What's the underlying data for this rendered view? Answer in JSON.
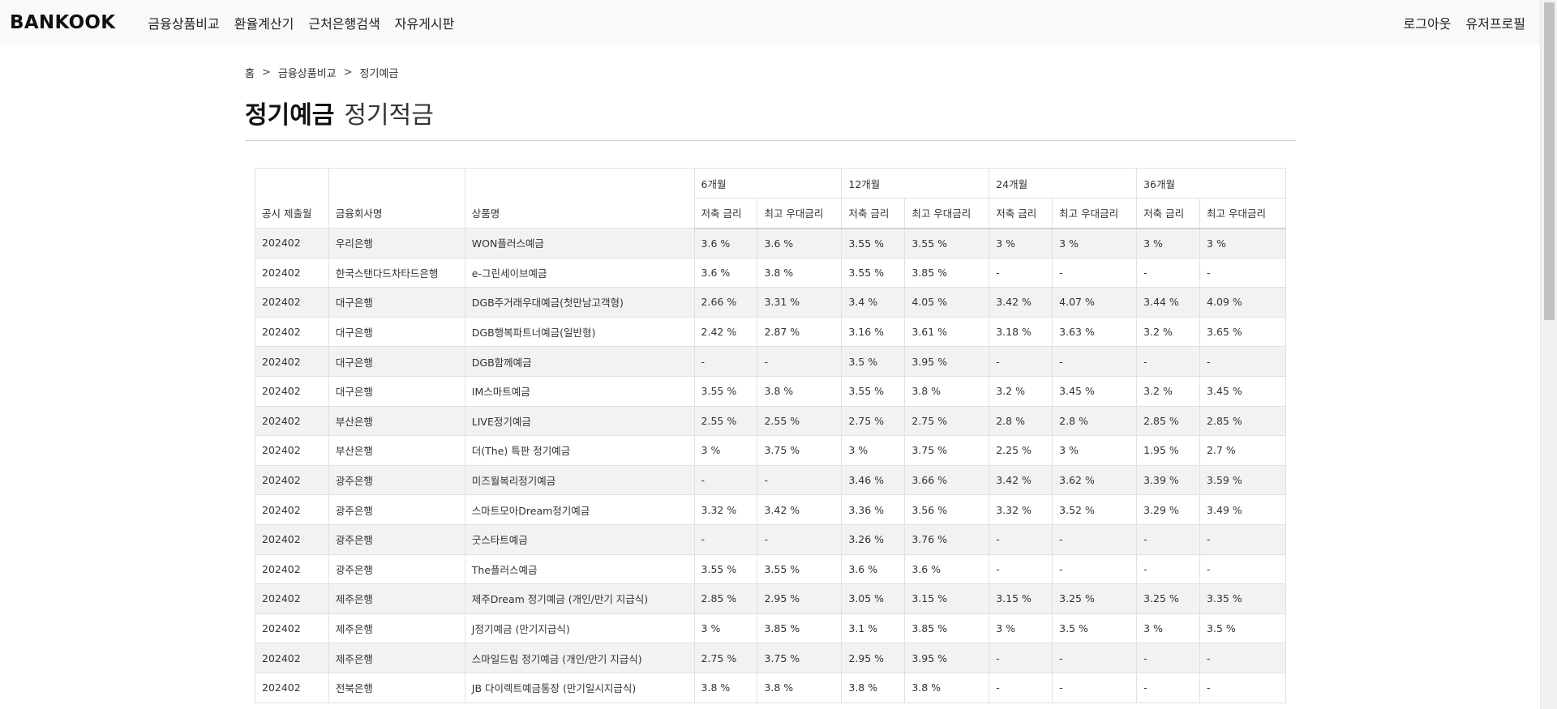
{
  "navbar": {
    "brand": "BANKOOK",
    "links": [
      "금융상품비교",
      "환율계산기",
      "근처은행검색",
      "자유게시판"
    ],
    "right_links": [
      "로그아웃",
      "유저프로필"
    ]
  },
  "breadcrumb": [
    "홈",
    "금융상품비교",
    "정기예금"
  ],
  "breadcrumb_separator": ">",
  "heading": {
    "active": "정기예금",
    "inactive": "정기적금"
  },
  "table": {
    "columns": {
      "month": "공시 제출월",
      "company": "금융회사명",
      "product": "상품명",
      "rate": "저축 금리",
      "max_rate": "최고 우대금리"
    },
    "terms": [
      "6개월",
      "12개월",
      "24개월",
      "36개월"
    ],
    "rows": [
      [
        "202402",
        "우리은행",
        "WON플러스예금",
        "3.6 %",
        "3.6 %",
        "3.55 %",
        "3.55 %",
        "3 %",
        "3 %",
        "3 %",
        "3 %"
      ],
      [
        "202402",
        "한국스탠다드차타드은행",
        "e-그린세이브예금",
        "3.6 %",
        "3.8 %",
        "3.55 %",
        "3.85 %",
        "-",
        "-",
        "-",
        "-"
      ],
      [
        "202402",
        "대구은행",
        "DGB주거래우대예금(첫만남고객형)",
        "2.66 %",
        "3.31 %",
        "3.4 %",
        "4.05 %",
        "3.42 %",
        "4.07 %",
        "3.44 %",
        "4.09 %"
      ],
      [
        "202402",
        "대구은행",
        "DGB행복파트너예금(일반형)",
        "2.42 %",
        "2.87 %",
        "3.16 %",
        "3.61 %",
        "3.18 %",
        "3.63 %",
        "3.2 %",
        "3.65 %"
      ],
      [
        "202402",
        "대구은행",
        "DGB함께예금",
        "-",
        "-",
        "3.5 %",
        "3.95 %",
        "-",
        "-",
        "-",
        "-"
      ],
      [
        "202402",
        "대구은행",
        "IM스마트예금",
        "3.55 %",
        "3.8 %",
        "3.55 %",
        "3.8 %",
        "3.2 %",
        "3.45 %",
        "3.2 %",
        "3.45 %"
      ],
      [
        "202402",
        "부산은행",
        "LIVE정기예금",
        "2.55 %",
        "2.55 %",
        "2.75 %",
        "2.75 %",
        "2.8 %",
        "2.8 %",
        "2.85 %",
        "2.85 %"
      ],
      [
        "202402",
        "부산은행",
        "더(The) 특판 정기예금",
        "3 %",
        "3.75 %",
        "3 %",
        "3.75 %",
        "2.25 %",
        "3 %",
        "1.95 %",
        "2.7 %"
      ],
      [
        "202402",
        "광주은행",
        "미즈월복리정기예금",
        "-",
        "-",
        "3.46 %",
        "3.66 %",
        "3.42 %",
        "3.62 %",
        "3.39 %",
        "3.59 %"
      ],
      [
        "202402",
        "광주은행",
        "스마트모아Dream정기예금",
        "3.32 %",
        "3.42 %",
        "3.36 %",
        "3.56 %",
        "3.32 %",
        "3.52 %",
        "3.29 %",
        "3.49 %"
      ],
      [
        "202402",
        "광주은행",
        "굿스타트예금",
        "-",
        "-",
        "3.26 %",
        "3.76 %",
        "-",
        "-",
        "-",
        "-"
      ],
      [
        "202402",
        "광주은행",
        "The플러스예금",
        "3.55 %",
        "3.55 %",
        "3.6 %",
        "3.6 %",
        "-",
        "-",
        "-",
        "-"
      ],
      [
        "202402",
        "제주은행",
        "제주Dream 정기예금 (개인/만기 지급식)",
        "2.85 %",
        "2.95 %",
        "3.05 %",
        "3.15 %",
        "3.15 %",
        "3.25 %",
        "3.25 %",
        "3.35 %"
      ],
      [
        "202402",
        "제주은행",
        "J정기예금 (만기지급식)",
        "3 %",
        "3.85 %",
        "3.1 %",
        "3.85 %",
        "3 %",
        "3.5 %",
        "3 %",
        "3.5 %"
      ],
      [
        "202402",
        "제주은행",
        "스마일드림 정기예금 (개인/만기 지급식)",
        "2.75 %",
        "3.75 %",
        "2.95 %",
        "3.95 %",
        "-",
        "-",
        "-",
        "-"
      ],
      [
        "202402",
        "전북은행",
        "JB 다이렉트예금통장 (만기일시지급식)",
        "3.8 %",
        "3.8 %",
        "3.8 %",
        "3.8 %",
        "-",
        "-",
        "-",
        "-"
      ]
    ]
  }
}
